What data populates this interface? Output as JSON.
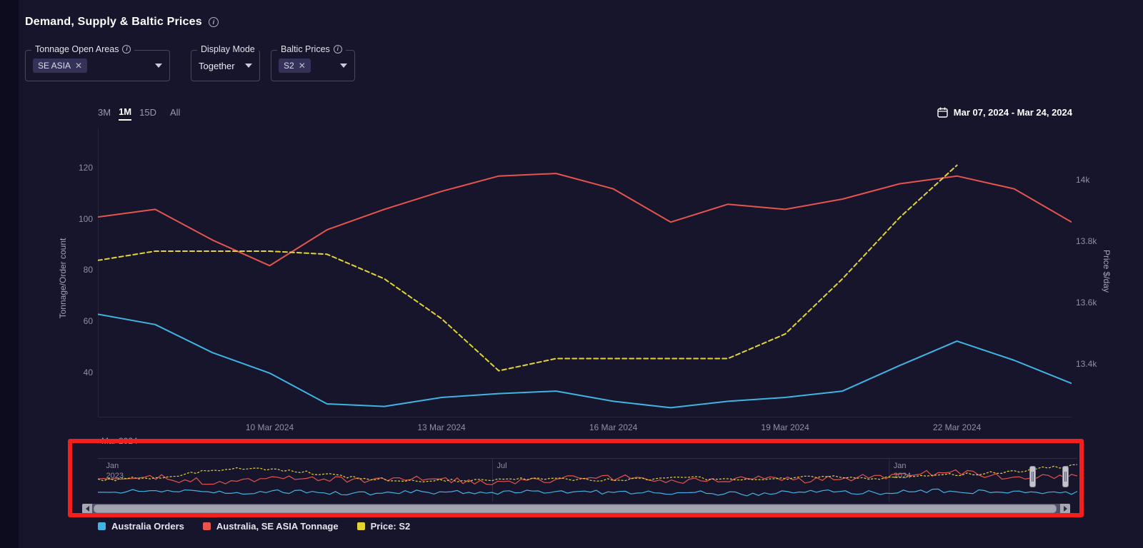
{
  "header": {
    "title": "Demand, Supply & Baltic Prices"
  },
  "filters": {
    "tonnage_open_areas": {
      "label": "Tonnage Open Areas",
      "chips": [
        "SE ASIA"
      ]
    },
    "display_mode": {
      "label": "Display Mode",
      "value": "Together"
    },
    "baltic_prices": {
      "label": "Baltic Prices",
      "chips": [
        "S2"
      ]
    }
  },
  "range_selector": {
    "options": [
      "3M",
      "1M",
      "15D",
      "All"
    ],
    "active": "1M"
  },
  "date_range": {
    "value": "Mar 07, 2024 - Mar 24, 2024"
  },
  "partial_month_label": "Mar 2024",
  "legend": [
    {
      "label": "Australia Orders",
      "color": "#41b3e3"
    },
    {
      "label": "Australia, SE ASIA Tonnage",
      "color": "#e5544e"
    },
    {
      "label": "Price: S2",
      "color": "#e3d435"
    }
  ],
  "chart_data": {
    "type": "line",
    "title": "Demand, Supply & Baltic Prices",
    "x_categories": [
      "07 Mar 2024",
      "08 Mar 2024",
      "09 Mar 2024",
      "10 Mar 2024",
      "11 Mar 2024",
      "12 Mar 2024",
      "13 Mar 2024",
      "14 Mar 2024",
      "15 Mar 2024",
      "16 Mar 2024",
      "17 Mar 2024",
      "18 Mar 2024",
      "19 Mar 2024",
      "20 Mar 2024",
      "21 Mar 2024",
      "22 Mar 2024",
      "23 Mar 2024",
      "24 Mar 2024"
    ],
    "x_ticks": [
      {
        "index": 3,
        "label": "10 Mar 2024"
      },
      {
        "index": 6,
        "label": "13 Mar 2024"
      },
      {
        "index": 9,
        "label": "16 Mar 2024"
      },
      {
        "index": 12,
        "label": "19 Mar 2024"
      },
      {
        "index": 15,
        "label": "22 Mar 2024"
      }
    ],
    "left_axis": {
      "title": "Tonnage/Order count",
      "min": 22.7,
      "max": 135.6,
      "ticks": [
        40,
        60,
        80,
        100,
        120
      ]
    },
    "right_axis": {
      "title": "Price $/day",
      "min": 13.228,
      "max": 14.17,
      "ticks": [
        {
          "value": 13.4,
          "label": "13.4k"
        },
        {
          "value": 13.6,
          "label": "13.6k"
        },
        {
          "value": 13.8,
          "label": "13.8k"
        },
        {
          "value": 14.0,
          "label": "14k"
        }
      ]
    },
    "series": [
      {
        "name": "Australia Orders",
        "axis": "left",
        "color": "#41b3e3",
        "dash": null,
        "values": [
          63,
          59,
          48,
          40,
          28,
          27,
          30.5,
          32,
          33,
          29,
          26.5,
          29,
          30.5,
          33,
          43,
          52.5,
          45,
          36
        ]
      },
      {
        "name": "Australia, SE ASIA Tonnage",
        "axis": "left",
        "color": "#e5544e",
        "dash": null,
        "values": [
          101,
          104,
          92,
          82,
          96,
          104,
          111,
          117,
          118,
          112,
          99,
          106,
          104,
          108,
          114,
          117,
          112,
          99
        ]
      },
      {
        "name": "Price: S2",
        "axis": "right",
        "color": "#e3d435",
        "dash": "6,4",
        "values": [
          13.74,
          13.77,
          13.77,
          13.77,
          13.76,
          13.68,
          13.55,
          13.38,
          13.42,
          13.42,
          13.42,
          13.42,
          13.5,
          13.68,
          13.88,
          14.05,
          null,
          null
        ]
      }
    ],
    "navigator": {
      "range_labels": [
        {
          "pos": 0.004,
          "lines": [
            "Jan",
            "2023"
          ]
        },
        {
          "pos": 0.403,
          "lines": [
            "Jul"
          ]
        },
        {
          "pos": 0.808,
          "lines": [
            "Jan",
            "2024"
          ]
        }
      ],
      "gridline_positions": [
        0.403,
        0.808
      ],
      "series": [
        {
          "name": "Australia Orders",
          "color": "#41b3e3",
          "dash": null,
          "seed": 11,
          "amp": 0.1,
          "base": [
            0.78,
            0.74,
            0.8,
            0.76,
            0.82,
            0.77,
            0.8,
            0.75,
            0.8,
            0.78,
            0.82,
            0.76,
            0.8,
            0.74,
            0.8,
            0.78
          ]
        },
        {
          "name": "Australia, SE ASIA Tonnage",
          "color": "#e5544e",
          "dash": null,
          "seed": 29,
          "amp": 0.16,
          "base": [
            0.52,
            0.45,
            0.58,
            0.42,
            0.52,
            0.46,
            0.55,
            0.48,
            0.42,
            0.52,
            0.45,
            0.5,
            0.42,
            0.3,
            0.42,
            0.38
          ]
        },
        {
          "name": "Price: S2",
          "color": "#e3d435",
          "dash": "3,2",
          "seed": 53,
          "amp": 0.07,
          "base": [
            0.5,
            0.42,
            0.22,
            0.28,
            0.45,
            0.52,
            0.5,
            0.46,
            0.5,
            0.44,
            0.5,
            0.42,
            0.46,
            0.38,
            0.3,
            0.14
          ]
        }
      ]
    }
  }
}
